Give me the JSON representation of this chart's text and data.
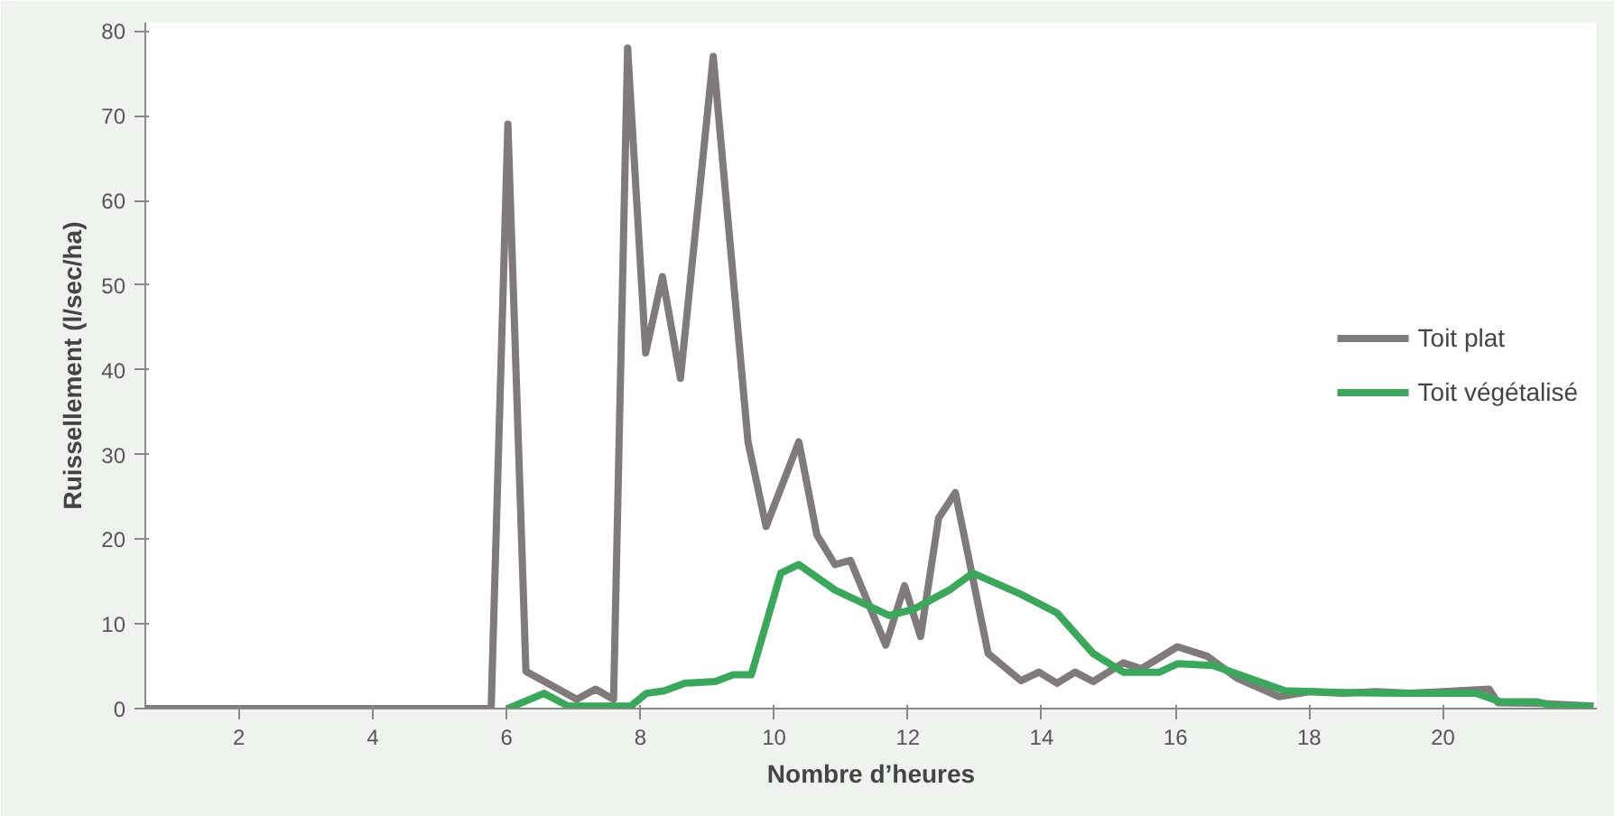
{
  "chart_data": {
    "type": "line",
    "xlabel": "Nombre d’heures",
    "ylabel": "Ruissellement (l/sec/ha)",
    "xlim": [
      0.6,
      22.3
    ],
    "ylim": [
      0,
      81
    ],
    "xticks": [
      2,
      4,
      6,
      8,
      10,
      12,
      14,
      16,
      18,
      20
    ],
    "yticks": [
      0,
      10,
      20,
      30,
      40,
      50,
      60,
      70,
      80
    ],
    "grid": false,
    "legend": "right",
    "line_style": "solid",
    "marker": "none",
    "series": [
      {
        "name": "Toit plat",
        "color": "#7f7a7c",
        "x": [
          0.6,
          5.77,
          6.02,
          6.29,
          7.05,
          7.33,
          7.6,
          7.81,
          8.08,
          8.33,
          8.6,
          9.09,
          9.61,
          9.88,
          10.37,
          10.64,
          10.91,
          11.14,
          11.67,
          11.95,
          12.19,
          12.46,
          12.71,
          13.2,
          13.69,
          13.96,
          14.23,
          14.5,
          14.77,
          15.22,
          15.49,
          16.03,
          16.47,
          16.92,
          17.55,
          18.0,
          18.5,
          19.0,
          19.5,
          20.0,
          20.69,
          20.82,
          21.5,
          22.25
        ],
        "values": [
          0,
          0,
          69,
          4.4,
          1.1,
          2.3,
          1.1,
          78,
          42,
          51,
          39,
          77,
          31.5,
          21.5,
          31.5,
          20.5,
          17,
          17.5,
          7.5,
          14.5,
          8.5,
          22.5,
          25.5,
          6.5,
          3.3,
          4.3,
          3,
          4.3,
          3.2,
          5.4,
          4.7,
          7.3,
          6.2,
          3.6,
          1.4,
          2,
          1.8,
          2,
          1.8,
          2,
          2.3,
          0.7,
          0.6,
          0.3
        ]
      },
      {
        "name": "Toit végétalisé",
        "color": "#3aa85a",
        "x": [
          6.02,
          6.56,
          6.92,
          7.86,
          8.09,
          8.36,
          8.67,
          9.12,
          9.39,
          9.66,
          10.1,
          10.37,
          10.91,
          11.72,
          12.08,
          12.62,
          12.97,
          13.69,
          14.23,
          14.77,
          15.22,
          15.76,
          16.03,
          16.56,
          17.1,
          17.64,
          18.5,
          19.5,
          20.5,
          20.86,
          21.4,
          21.67,
          22.25
        ],
        "values": [
          0,
          1.8,
          0.3,
          0.3,
          1.8,
          2.1,
          3,
          3.2,
          4,
          4,
          16,
          17,
          14,
          11,
          11.7,
          14,
          16,
          13.5,
          11.3,
          6.5,
          4.3,
          4.3,
          5.3,
          5.1,
          3.6,
          2.1,
          1.9,
          1.8,
          1.8,
          0.8,
          0.8,
          0.3,
          0.3
        ]
      }
    ]
  }
}
